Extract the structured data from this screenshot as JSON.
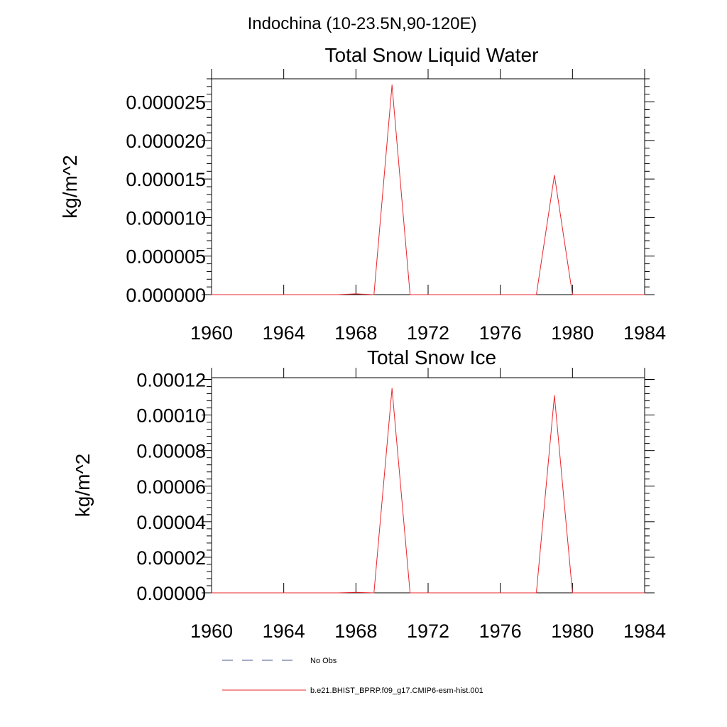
{
  "figure_title": "Indochina (10-23.5N,90-120E)",
  "colors": {
    "model": "#e8252b",
    "obs": "#4a5a8c"
  },
  "legend": {
    "obs_label": "No Obs",
    "model_label": "b.e21.BHIST_BPRP.f09_g17.CMIP6-esm-hist.001"
  },
  "chart_data": [
    {
      "type": "line",
      "title": "Total Snow Liquid Water",
      "xlabel": "",
      "ylabel": "kg/m^2",
      "xlim": [
        1960,
        1984
      ],
      "ylim": [
        0,
        2.8e-05
      ],
      "x_ticks": [
        1960,
        1964,
        1968,
        1972,
        1976,
        1980,
        1984
      ],
      "x_tick_labels": [
        "1960",
        "1964",
        "1968",
        "1972",
        "1976",
        "1980",
        "1984"
      ],
      "y_ticks": [
        0,
        5e-06,
        1e-05,
        1.5e-05,
        2e-05,
        2.5e-05
      ],
      "y_tick_labels": [
        "0.000000",
        "0.000005",
        "0.000010",
        "0.000015",
        "0.000020",
        "0.000025"
      ],
      "grid": false,
      "series": [
        {
          "name": "b.e21.BHIST_BPRP.f09_g17.CMIP6-esm-hist.001",
          "x": [
            1960,
            1961,
            1962,
            1963,
            1964,
            1965,
            1966,
            1967,
            1968,
            1969,
            1970,
            1971,
            1972,
            1973,
            1974,
            1975,
            1976,
            1977,
            1978,
            1979,
            1980,
            1981,
            1982,
            1983,
            1984
          ],
          "values": [
            0,
            0,
            0,
            0,
            0,
            0,
            0,
            0,
            1e-07,
            0,
            2.72e-05,
            0,
            0,
            0,
            0,
            0,
            0,
            0,
            0,
            1.55e-05,
            0,
            0,
            0,
            0,
            0
          ]
        }
      ]
    },
    {
      "type": "line",
      "title": "Total Snow Ice",
      "xlabel": "",
      "ylabel": "kg/m^2",
      "xlim": [
        1960,
        1984
      ],
      "ylim": [
        0,
        0.000121
      ],
      "x_ticks": [
        1960,
        1964,
        1968,
        1972,
        1976,
        1980,
        1984
      ],
      "x_tick_labels": [
        "1960",
        "1964",
        "1968",
        "1972",
        "1976",
        "1980",
        "1984"
      ],
      "y_ticks": [
        0,
        2e-05,
        4e-05,
        6e-05,
        8e-05,
        0.0001,
        0.00012
      ],
      "y_tick_labels": [
        "0.00000",
        "0.00002",
        "0.00004",
        "0.00006",
        "0.00008",
        "0.00010",
        "0.00012"
      ],
      "grid": false,
      "series": [
        {
          "name": "b.e21.BHIST_BPRP.f09_g17.CMIP6-esm-hist.001",
          "x": [
            1960,
            1961,
            1962,
            1963,
            1964,
            1965,
            1966,
            1967,
            1968,
            1969,
            1970,
            1971,
            1972,
            1973,
            1974,
            1975,
            1976,
            1977,
            1978,
            1979,
            1980,
            1981,
            1982,
            1983,
            1984
          ],
          "values": [
            0,
            0,
            0,
            0,
            0,
            0,
            0,
            0,
            3e-07,
            0,
            0.000115,
            0,
            0,
            0,
            0,
            0,
            0,
            0,
            0,
            0.000111,
            0,
            0,
            0,
            0,
            0
          ]
        }
      ]
    }
  ]
}
